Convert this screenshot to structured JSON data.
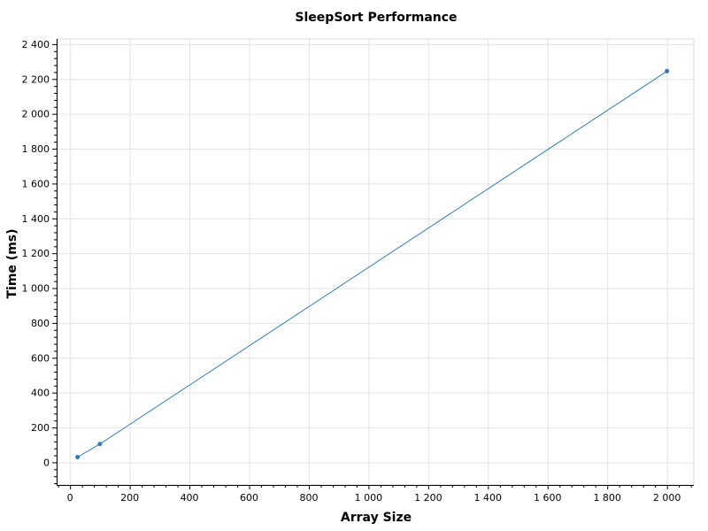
{
  "chart_data": {
    "type": "line",
    "title": "SleepSort Performance",
    "xlabel": "Array Size",
    "ylabel": "Time (ms)",
    "xlim": [
      -45,
      2090
    ],
    "ylim": [
      -130,
      2430
    ],
    "xticks": [
      0,
      200,
      400,
      600,
      800,
      1000,
      1200,
      1400,
      1600,
      1800,
      2000
    ],
    "xtick_labels": [
      "0",
      "200",
      "400",
      "600",
      "800",
      "1 000",
      "1 200",
      "1 400",
      "1 600",
      "1 800",
      "2 000"
    ],
    "yticks": [
      0,
      200,
      400,
      600,
      800,
      1000,
      1200,
      1400,
      1600,
      1800,
      2000,
      2200,
      2400
    ],
    "ytick_labels": [
      "0",
      "200",
      "400",
      "600",
      "800",
      "1 000",
      "1 200",
      "1 400",
      "1 600",
      "1 800",
      "2 000",
      "2 200",
      "2 400"
    ],
    "grid": true,
    "series": [
      {
        "color": "#2e7bb4",
        "x": [
          25,
          100,
          2000
        ],
        "y": [
          30,
          105,
          2245
        ]
      }
    ]
  }
}
